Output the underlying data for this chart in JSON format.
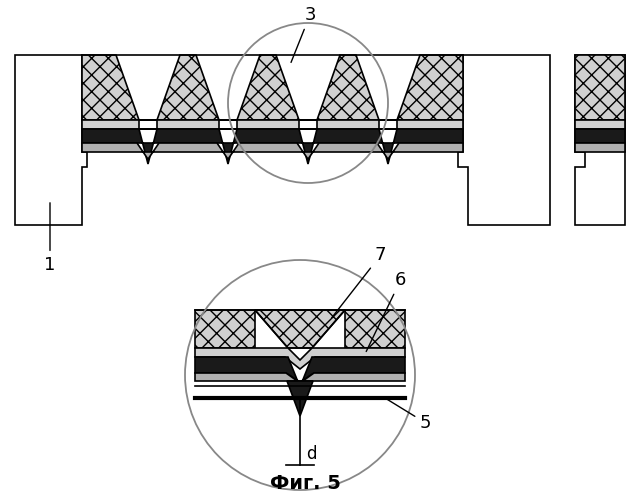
{
  "title": "Фиг. 5",
  "bg_color": "#ffffff",
  "outline_color": "#000000",
  "gray_color": "#b0b0b0",
  "light_gray": "#d0d0d0",
  "dark_color": "#1a1a1a",
  "figsize": [
    6.41,
    5.0
  ],
  "dpi": 100
}
